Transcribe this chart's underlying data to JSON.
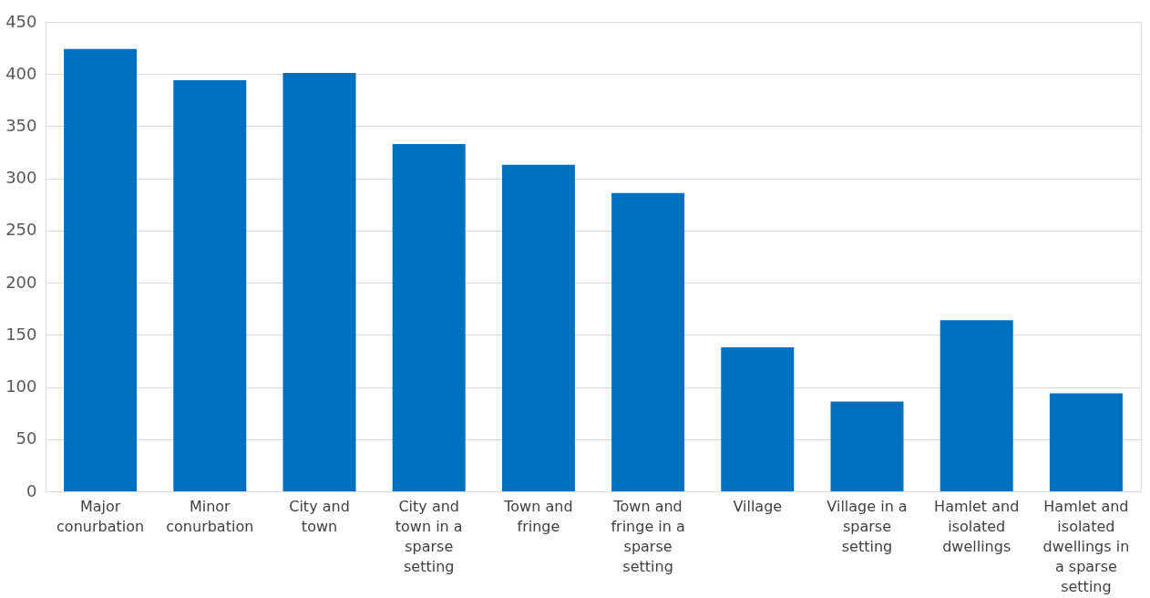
{
  "chart_data": {
    "type": "bar",
    "categories": [
      "Major conurbation",
      "Minor conurbation",
      "City and town",
      "City and town in a sparse setting",
      "Town and fringe",
      "Town and fringe in a sparse setting",
      "Village",
      "Village in a sparse setting",
      "Hamlet and isolated dwellings",
      "Hamlet and isolated dwellings in a sparse setting"
    ],
    "values": [
      424,
      394,
      401,
      333,
      313,
      286,
      138,
      86,
      164,
      94
    ],
    "color": "#0070c0",
    "ylim": [
      0,
      450
    ],
    "yticks": [
      0,
      50,
      100,
      150,
      200,
      250,
      300,
      350,
      400,
      450
    ],
    "grid": "y"
  }
}
